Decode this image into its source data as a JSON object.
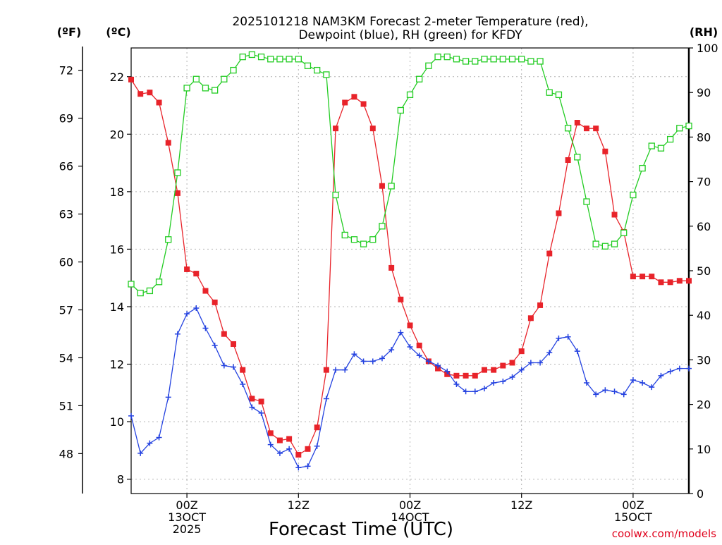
{
  "chart_data": {
    "type": "line",
    "title_line1": "2025101218 NAM3KM Forecast 2-meter Temperature (red),",
    "title_line2": "Dewpoint (blue), RH (green) for KFDY",
    "xlabel": "Forecast Time (UTC)",
    "credit": "coolwx.com/models",
    "units": {
      "fahrenheit": "(ºF)",
      "celsius": "(ºC)",
      "rh": "(RH)"
    },
    "y_left_c": {
      "range": [
        7.5,
        23
      ],
      "ticks": [
        8,
        10,
        12,
        14,
        16,
        18,
        20,
        22
      ]
    },
    "y_left_f": {
      "ticks": [
        48,
        51,
        54,
        57,
        60,
        63,
        66,
        69,
        72
      ]
    },
    "y_right_rh": {
      "range": [
        0,
        100
      ],
      "ticks": [
        0,
        10,
        20,
        30,
        40,
        50,
        60,
        70,
        80,
        90,
        100
      ]
    },
    "x_range_hours": [
      18,
      78
    ],
    "x_ticks": [
      {
        "hour": 24,
        "lines": [
          "00Z",
          "13OCT",
          "2025"
        ]
      },
      {
        "hour": 36,
        "lines": [
          "12Z"
        ]
      },
      {
        "hour": 48,
        "lines": [
          "00Z",
          "14OCT"
        ]
      },
      {
        "hour": 60,
        "lines": [
          "12Z"
        ]
      },
      {
        "hour": 72,
        "lines": [
          "00Z",
          "15OCT"
        ]
      }
    ],
    "hours": [
      18,
      19,
      20,
      21,
      22,
      23,
      24,
      25,
      26,
      27,
      28,
      29,
      30,
      31,
      32,
      33,
      34,
      35,
      36,
      37,
      38,
      39,
      40,
      41,
      42,
      43,
      44,
      45,
      46,
      47,
      48,
      49,
      50,
      51,
      52,
      53,
      54,
      55,
      56,
      57,
      58,
      59,
      60,
      61,
      62,
      63,
      64,
      65,
      66,
      67,
      68,
      69,
      70,
      71,
      72,
      73,
      74,
      75,
      76,
      77,
      78
    ],
    "series": [
      {
        "name": "Temperature",
        "unit": "C",
        "color": "#e8232a",
        "marker": "filled-square",
        "values": [
          21.9,
          21.4,
          21.45,
          21.1,
          19.7,
          17.95,
          15.3,
          15.15,
          14.55,
          14.15,
          13.05,
          12.7,
          11.8,
          10.8,
          10.7,
          9.6,
          9.35,
          9.4,
          8.85,
          9.05,
          9.8,
          11.8,
          20.2,
          21.1,
          21.3,
          21.05,
          20.2,
          18.2,
          15.35,
          14.25,
          13.35,
          12.65,
          12.1,
          11.85,
          11.65,
          11.6,
          11.6,
          11.6,
          11.8,
          11.8,
          11.95,
          12.05,
          12.45,
          13.6,
          14.05,
          15.85,
          17.25,
          19.1,
          20.4,
          20.2,
          20.2,
          19.4,
          17.2,
          16.6,
          15.05,
          15.05,
          15.05,
          14.85,
          14.85,
          14.9,
          14.9
        ]
      },
      {
        "name": "Dewpoint",
        "unit": "C",
        "color": "#2442e0",
        "marker": "plus",
        "values": [
          10.2,
          8.9,
          9.25,
          9.45,
          10.85,
          13.05,
          13.75,
          13.95,
          13.25,
          12.65,
          11.95,
          11.9,
          11.3,
          10.5,
          10.3,
          9.2,
          8.9,
          9.05,
          8.4,
          8.45,
          9.15,
          10.8,
          11.8,
          11.8,
          12.35,
          12.1,
          12.1,
          12.2,
          12.5,
          13.1,
          12.6,
          12.3,
          12.1,
          11.95,
          11.75,
          11.3,
          11.05,
          11.05,
          11.15,
          11.35,
          11.4,
          11.55,
          11.8,
          12.05,
          12.05,
          12.4,
          12.9,
          12.95,
          12.45,
          11.35,
          10.95,
          11.1,
          11.05,
          10.95,
          11.45,
          11.35,
          11.2,
          11.6,
          11.75,
          11.85,
          11.85
        ]
      },
      {
        "name": "RH",
        "unit": "%",
        "color": "#22cc22",
        "marker": "open-square",
        "values": [
          47,
          45,
          45.5,
          47.5,
          57,
          72,
          91,
          93,
          91,
          90.5,
          93,
          95,
          98,
          98.5,
          98,
          97.5,
          97.5,
          97.5,
          97.5,
          96,
          95,
          94,
          67,
          58,
          57,
          56,
          57,
          60,
          69,
          86,
          89.5,
          93,
          96,
          98,
          98,
          97.5,
          97,
          97,
          97.5,
          97.5,
          97.5,
          97.5,
          97.5,
          97,
          97,
          90,
          89.5,
          82,
          75.5,
          65.5,
          56,
          55.5,
          56,
          58.5,
          67,
          73,
          78,
          77.5,
          79.5,
          82,
          82.5
        ]
      }
    ]
  }
}
